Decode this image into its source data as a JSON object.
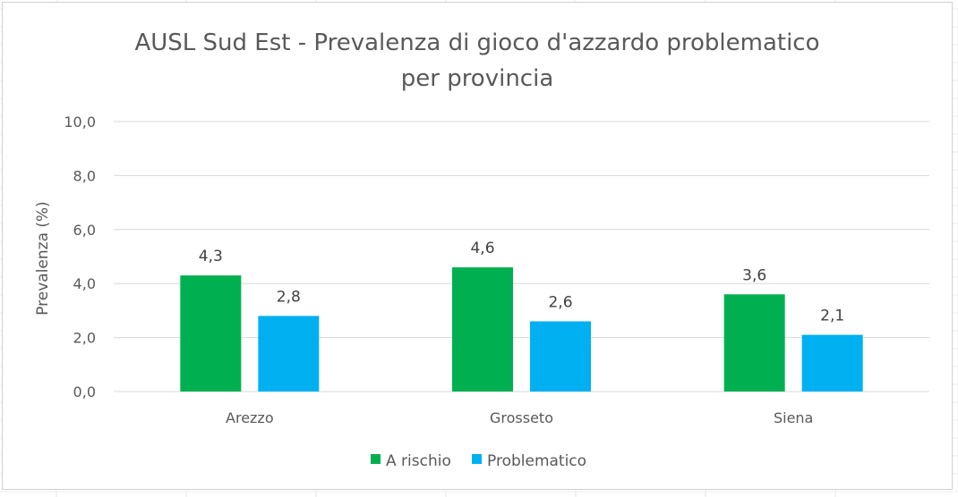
{
  "chart_data": {
    "type": "bar",
    "title": "AUSL Sud Est - Prevalenza di gioco d'azzardo problematico per provincia",
    "title_lines": [
      "AUSL Sud Est - Prevalenza di gioco d'azzardo problematico",
      "per provincia"
    ],
    "xlabel": "",
    "ylabel": "Prevalenza (%)",
    "ylim": [
      0,
      10
    ],
    "yticks": [
      0,
      2,
      4,
      6,
      8,
      10
    ],
    "ytick_labels": [
      "0,0",
      "2,0",
      "4,0",
      "6,0",
      "8,0",
      "10,0"
    ],
    "grid": true,
    "legend_position": "bottom",
    "categories": [
      "Arezzo",
      "Grosseto",
      "Siena"
    ],
    "series": [
      {
        "name": "A rischio",
        "color": "#00b050",
        "values": [
          4.3,
          4.6,
          3.6
        ],
        "labels": [
          "4,3",
          "4,6",
          "3,6"
        ]
      },
      {
        "name": "Problematico",
        "color": "#00b0f0",
        "values": [
          2.8,
          2.6,
          2.1
        ],
        "labels": [
          "2,8",
          "2,6",
          "2,1"
        ]
      }
    ],
    "gridline_color": "#d9d9d9"
  }
}
